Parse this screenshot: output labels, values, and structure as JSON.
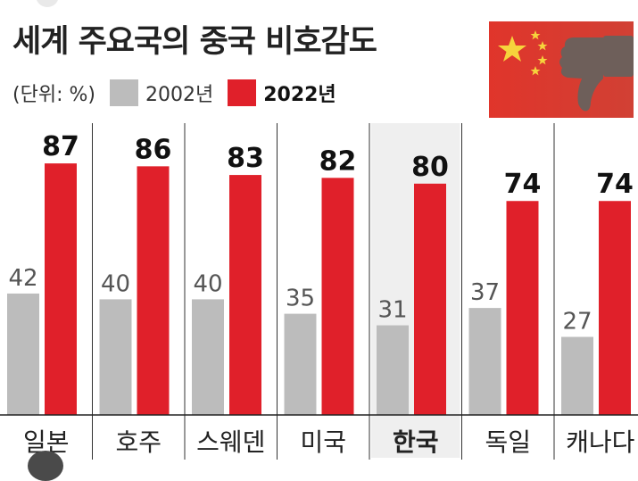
{
  "title": "세계 주요국의 중국 비호감도",
  "unit_label": "(단위: %)",
  "chart_data": {
    "type": "bar",
    "title": "세계 주요국의 중국 비호감도",
    "unit": "(단위: %)",
    "categories": [
      "일본",
      "호주",
      "스웨덴",
      "미국",
      "한국",
      "독일",
      "캐나다"
    ],
    "highlight_category": "한국",
    "series": [
      {
        "name": "2002년",
        "color": "#bcbcbc",
        "values": [
          42,
          40,
          40,
          35,
          31,
          37,
          27
        ]
      },
      {
        "name": "2022년",
        "color": "#e0202a",
        "values": [
          87,
          86,
          83,
          82,
          80,
          74,
          74
        ]
      }
    ],
    "ylim": [
      0,
      100
    ],
    "grid": false,
    "legend": "top-left"
  },
  "flag": {
    "colors": {
      "field": "#dc3b2e",
      "star": "#f6d33c",
      "hand": "#6e5f5a"
    }
  },
  "icons": [
    "china-flag-icon",
    "thumbs-down-icon",
    "logo-icon"
  ]
}
